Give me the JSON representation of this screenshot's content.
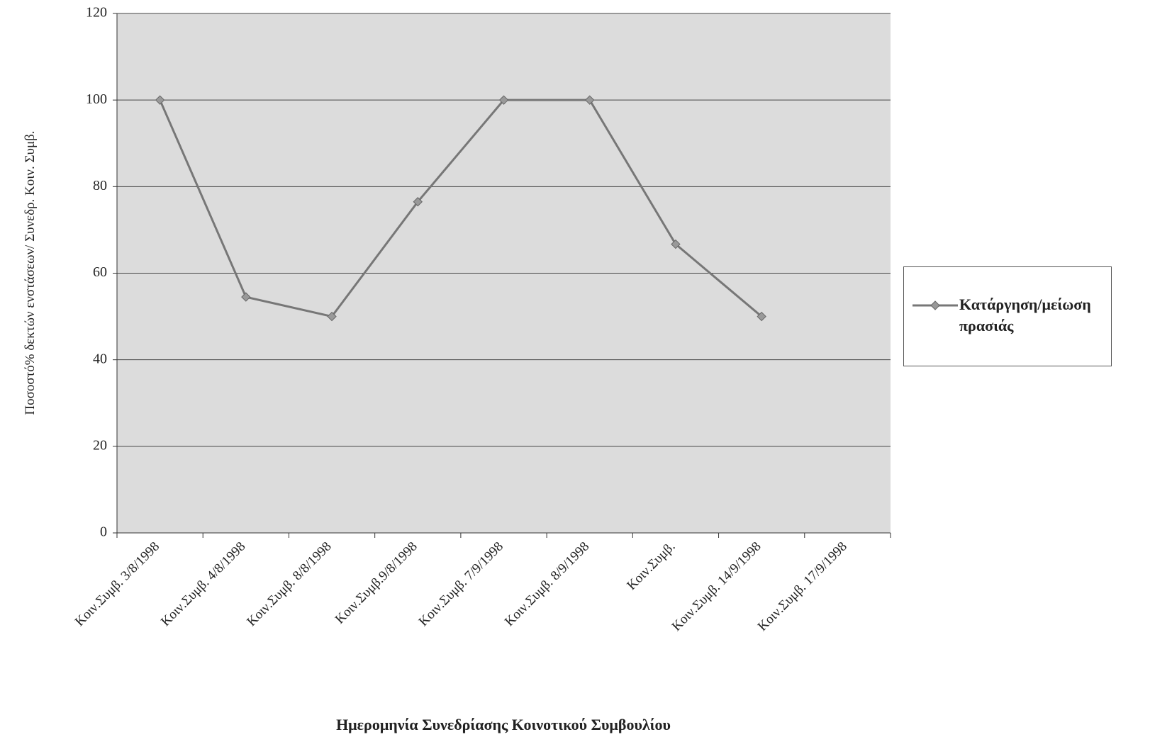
{
  "chart_data": {
    "type": "line",
    "y_label": "Ποσοστό% δεκτών ενστάσεων/ Συνεδρ. Κοιν. Συμβ.",
    "x_label": "Ημερομηνία Συνεδρίασης Κοινοτικού Συμβουλίου",
    "categories": [
      "Κοιν.Συμβ. 3/8/1998",
      "Κοιν.Συμβ. 4/8/1998",
      "Κοιν.Συμβ. 8/8/1998",
      "Κοιν.Συμβ.9/8/1998",
      "Κοιν.Συμβ. 7/9/1998",
      "Κοιν.Συμβ. 8/9/1998",
      "Κοιν.Συμβ.",
      "Κοιν.Συμβ. 14/9/1998",
      "Κοιν.Συμβ. 17/9/1998"
    ],
    "series": [
      {
        "name": "Κατάργηση/μείωση πρασιάς",
        "color": "#777777",
        "values": [
          100,
          54.5,
          50,
          76.5,
          100,
          100,
          66.7,
          50,
          null
        ]
      }
    ],
    "ylim": [
      0,
      120
    ],
    "yticks": [
      0,
      20,
      40,
      60,
      80,
      100,
      120
    ],
    "grid": true
  }
}
